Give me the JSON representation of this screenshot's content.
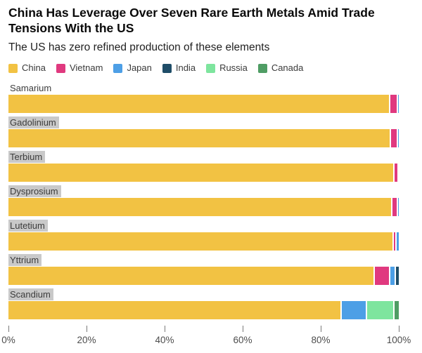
{
  "header": {
    "title": "China Has Leverage Over Seven Rare Earth Metals Amid Trade Tensions With the US",
    "subtitle": "The US has zero refined production of these elements"
  },
  "legend": [
    {
      "label": "China",
      "color": "#F2C243"
    },
    {
      "label": "Vietnam",
      "color": "#E0397F"
    },
    {
      "label": "Japan",
      "color": "#4D9FE6"
    },
    {
      "label": "India",
      "color": "#1F4D68"
    },
    {
      "label": "Russia",
      "color": "#7EE59E"
    },
    {
      "label": "Canada",
      "color": "#4F9D64"
    }
  ],
  "chart_data": {
    "type": "bar",
    "orientation": "horizontal",
    "stacked": true,
    "unit": "percent of refined production",
    "xlim": [
      0,
      100
    ],
    "x_ticks": [
      "0%",
      "20%",
      "40%",
      "60%",
      "80%",
      "100%"
    ],
    "grid": false,
    "legend_position": "top",
    "categories": [
      "Samarium",
      "Gadolinium",
      "Terbium",
      "Dysprosium",
      "Lutetium",
      "Yttrium",
      "Scandium"
    ],
    "category_label_highlighted": [
      false,
      true,
      true,
      true,
      true,
      true,
      true
    ],
    "series": [
      {
        "name": "China",
        "values": [
          97.4,
          97.7,
          98.5,
          98.0,
          98.3,
          93.5,
          85.0
        ]
      },
      {
        "name": "Vietnam",
        "values": [
          2.0,
          1.8,
          1.1,
          1.5,
          0.8,
          4.0,
          0
        ]
      },
      {
        "name": "Japan",
        "values": [
          0.6,
          0.5,
          0.4,
          0.5,
          0.9,
          1.5,
          6.5
        ]
      },
      {
        "name": "India",
        "values": [
          0,
          0,
          0,
          0,
          0,
          1.0,
          0
        ]
      },
      {
        "name": "Russia",
        "values": [
          0,
          0,
          0,
          0,
          0,
          0,
          7.0
        ]
      },
      {
        "name": "Canada",
        "values": [
          0,
          0,
          0,
          0,
          0,
          0,
          1.5
        ]
      }
    ]
  }
}
